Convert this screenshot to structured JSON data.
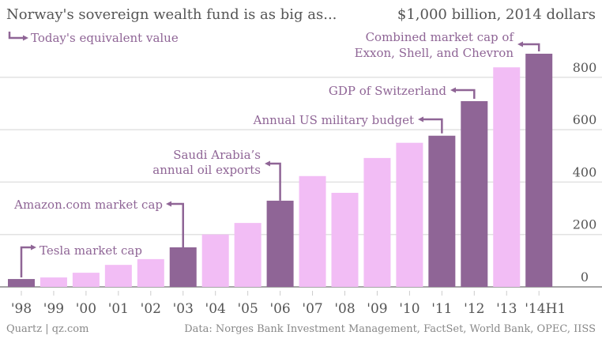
{
  "header": {
    "title": "Norway's sovereign wealth fund is as big as...",
    "unit_label": "$1,000 billion, 2014 dollars",
    "legend_label": "Today's equivalent value"
  },
  "footer": {
    "source_left": "Quartz | qz.com",
    "source_right": "Data: Norges Bank Investment Management, FactSet, World Bank, OPEC, IISS"
  },
  "colors": {
    "highlight": "#8f6596",
    "normal": "#f2bdf5",
    "text": "#555555",
    "annotation": "#8f6596",
    "grid": "#e2e2e2"
  },
  "chart_data": {
    "type": "bar",
    "title": "Norway's sovereign wealth fund is as big as...",
    "ylabel": "$1,000 billion, 2014 dollars",
    "categories": [
      "'98",
      "'99",
      "'00",
      "'01",
      "'02",
      "'03",
      "'04",
      "'05",
      "'06",
      "'07",
      "'08",
      "'09",
      "'10",
      "'11",
      "'12",
      "'13",
      "'14H1"
    ],
    "values": [
      30,
      36,
      54,
      84,
      106,
      151,
      200,
      244,
      329,
      423,
      359,
      492,
      550,
      577,
      709,
      838,
      890
    ],
    "highlighted": [
      true,
      false,
      false,
      false,
      false,
      true,
      false,
      false,
      true,
      false,
      false,
      false,
      false,
      true,
      true,
      false,
      true
    ],
    "ylim": [
      0,
      900
    ],
    "yticks": [
      0,
      200,
      400,
      600,
      800
    ],
    "grid": true,
    "yaxis_side": "right",
    "annotations": [
      {
        "category": "'98",
        "text": [
          "Tesla market cap"
        ]
      },
      {
        "category": "'03",
        "text": [
          "Amazon.com market cap"
        ]
      },
      {
        "category": "'06",
        "text": [
          "Saudi Arabia’s",
          "annual oil exports"
        ]
      },
      {
        "category": "'11",
        "text": [
          "Annual US military budget"
        ]
      },
      {
        "category": "'12",
        "text": [
          "GDP of Switzerland"
        ]
      },
      {
        "category": "'14H1",
        "text": [
          "Combined market cap of",
          "Exxon, Shell, and Chevron"
        ]
      }
    ]
  }
}
